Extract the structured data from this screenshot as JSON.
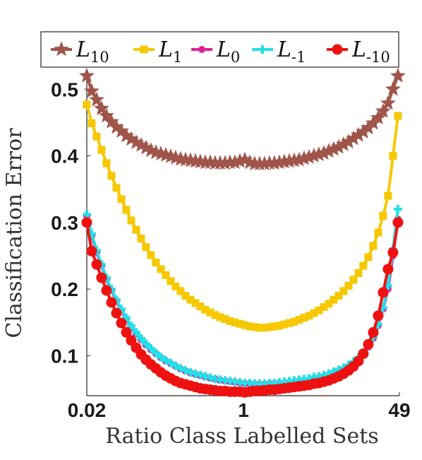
{
  "chart_data": {
    "type": "line",
    "xlabel": "Ratio Class Labelled Sets",
    "ylabel": "Classification Error",
    "x_ticks": [
      "0.02",
      "1",
      "49"
    ],
    "y_ticks": [
      "0.1",
      "0.2",
      "0.3",
      "0.4",
      "0.5"
    ],
    "y_tick_values": [
      0.1,
      0.2,
      0.3,
      0.4,
      0.5
    ],
    "xscale": "log",
    "x_range": [
      0.02,
      49
    ],
    "ylim": [
      0.04,
      0.53
    ],
    "grid": false,
    "legend_position": "top",
    "x": [
      0.02,
      0.0226,
      0.0256,
      0.0289,
      0.0327,
      0.037,
      0.0419,
      0.0474,
      0.0536,
      0.0606,
      0.0686,
      0.0776,
      0.0877,
      0.0992,
      0.1123,
      0.127,
      0.1436,
      0.1625,
      0.1838,
      0.2079,
      0.2352,
      0.2661,
      0.301,
      0.3405,
      0.3852,
      0.4357,
      0.4929,
      0.5576,
      0.6307,
      0.7135,
      0.8071,
      0.913,
      1.0328,
      1.1684,
      1.3217,
      1.4951,
      1.6913,
      1.9132,
      2.1643,
      2.4483,
      2.7696,
      3.1331,
      3.5442,
      4.0093,
      4.5354,
      5.1306,
      5.8039,
      6.5655,
      7.4271,
      8.4017,
      9.5042,
      10.7514,
      12.1623,
      13.7583,
      15.5638,
      17.6062,
      19.9166,
      22.5302,
      25.4868,
      28.8314,
      32.6149,
      36.8949,
      41.7364,
      47.2134
    ],
    "series": [
      {
        "name": "10",
        "color": "#a0554a",
        "marker": "star",
        "values": [
          0.52,
          0.497,
          0.484,
          0.471,
          0.46,
          0.451,
          0.443,
          0.437,
          0.43,
          0.425,
          0.42,
          0.416,
          0.412,
          0.408,
          0.405,
          0.403,
          0.401,
          0.399,
          0.397,
          0.395,
          0.394,
          0.393,
          0.392,
          0.391,
          0.39,
          0.39,
          0.389,
          0.389,
          0.389,
          0.39,
          0.39,
          0.392,
          0.394,
          0.39,
          0.388,
          0.388,
          0.388,
          0.389,
          0.389,
          0.39,
          0.391,
          0.392,
          0.393,
          0.394,
          0.396,
          0.398,
          0.4,
          0.402,
          0.404,
          0.407,
          0.41,
          0.413,
          0.417,
          0.421,
          0.426,
          0.431,
          0.436,
          0.442,
          0.449,
          0.457,
          0.467,
          0.479,
          0.5,
          0.52
        ]
      },
      {
        "name": "1",
        "color": "#f6c800",
        "marker": "square",
        "values": [
          0.477,
          0.449,
          0.429,
          0.409,
          0.389,
          0.37,
          0.352,
          0.335,
          0.319,
          0.303,
          0.289,
          0.276,
          0.263,
          0.251,
          0.24,
          0.23,
          0.221,
          0.212,
          0.204,
          0.197,
          0.19,
          0.184,
          0.179,
          0.174,
          0.169,
          0.165,
          0.161,
          0.158,
          0.155,
          0.152,
          0.15,
          0.148,
          0.146,
          0.144,
          0.143,
          0.142,
          0.142,
          0.143,
          0.144,
          0.145,
          0.147,
          0.149,
          0.151,
          0.154,
          0.157,
          0.16,
          0.164,
          0.168,
          0.173,
          0.178,
          0.184,
          0.19,
          0.197,
          0.205,
          0.214,
          0.224,
          0.235,
          0.248,
          0.265,
          0.285,
          0.31,
          0.34,
          0.4,
          0.46
        ]
      },
      {
        "name": "0",
        "color": "#e0209a",
        "marker": "circle",
        "values": [
          0.31,
          0.28,
          0.255,
          0.235,
          0.215,
          0.198,
          0.182,
          0.168,
          0.155,
          0.143,
          0.133,
          0.124,
          0.116,
          0.109,
          0.103,
          0.097,
          0.092,
          0.088,
          0.084,
          0.08,
          0.077,
          0.074,
          0.072,
          0.07,
          0.068,
          0.066,
          0.065,
          0.063,
          0.062,
          0.061,
          0.06,
          0.059,
          0.058,
          0.058,
          0.057,
          0.057,
          0.057,
          0.058,
          0.058,
          0.059,
          0.059,
          0.06,
          0.061,
          0.062,
          0.063,
          0.064,
          0.066,
          0.067,
          0.069,
          0.071,
          0.074,
          0.077,
          0.08,
          0.084,
          0.089,
          0.095,
          0.103,
          0.113,
          0.126,
          0.145,
          0.17,
          0.2,
          0.25,
          0.305
        ]
      },
      {
        "name": "-1",
        "color": "#22e0e8",
        "marker": "plus",
        "values": [
          0.312,
          0.283,
          0.258,
          0.237,
          0.217,
          0.2,
          0.184,
          0.17,
          0.157,
          0.145,
          0.135,
          0.126,
          0.118,
          0.111,
          0.104,
          0.098,
          0.093,
          0.089,
          0.085,
          0.081,
          0.078,
          0.075,
          0.073,
          0.071,
          0.069,
          0.067,
          0.065,
          0.064,
          0.063,
          0.062,
          0.061,
          0.06,
          0.059,
          0.059,
          0.058,
          0.058,
          0.058,
          0.059,
          0.059,
          0.06,
          0.061,
          0.062,
          0.063,
          0.064,
          0.065,
          0.066,
          0.068,
          0.069,
          0.071,
          0.073,
          0.076,
          0.079,
          0.082,
          0.086,
          0.091,
          0.097,
          0.105,
          0.115,
          0.128,
          0.147,
          0.172,
          0.205,
          0.26,
          0.32
        ]
      },
      {
        "name": "-10",
        "color": "#ee1111",
        "marker": "dot",
        "values": [
          0.3,
          0.257,
          0.237,
          0.217,
          0.198,
          0.18,
          0.164,
          0.149,
          0.135,
          0.123,
          0.112,
          0.102,
          0.094,
          0.087,
          0.081,
          0.075,
          0.07,
          0.066,
          0.062,
          0.059,
          0.057,
          0.055,
          0.053,
          0.051,
          0.05,
          0.049,
          0.048,
          0.047,
          0.047,
          0.046,
          0.046,
          0.046,
          0.045,
          0.046,
          0.047,
          0.047,
          0.048,
          0.049,
          0.049,
          0.05,
          0.051,
          0.052,
          0.053,
          0.054,
          0.055,
          0.056,
          0.058,
          0.059,
          0.061,
          0.063,
          0.066,
          0.069,
          0.073,
          0.078,
          0.084,
          0.092,
          0.103,
          0.117,
          0.135,
          0.16,
          0.195,
          0.23,
          0.255,
          0.3
        ]
      }
    ]
  },
  "legend": [
    {
      "base": "L",
      "sub": "10"
    },
    {
      "base": "L",
      "sub": "1"
    },
    {
      "base": "L",
      "sub": "0"
    },
    {
      "base": "L",
      "sub": "-1"
    },
    {
      "base": "L",
      "sub": "-10"
    }
  ]
}
